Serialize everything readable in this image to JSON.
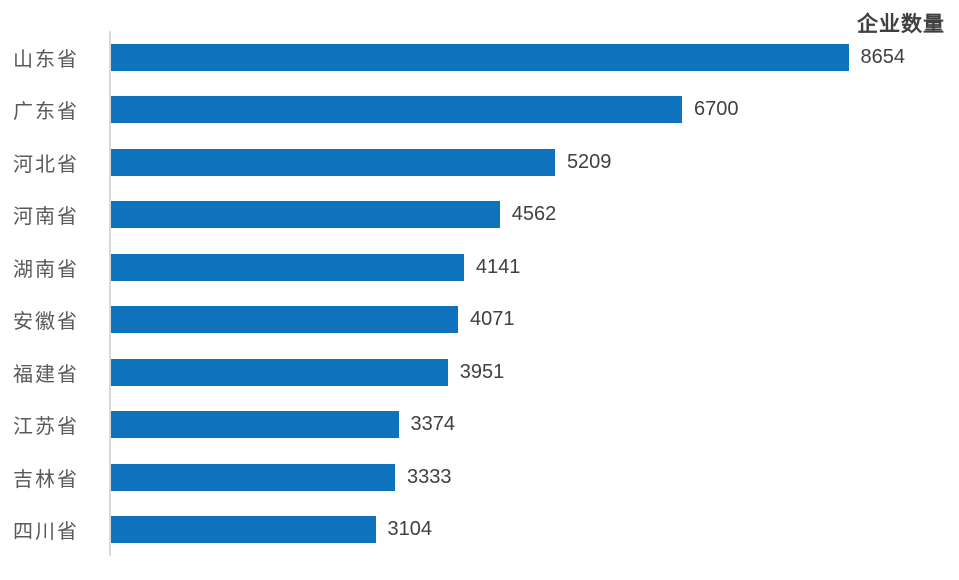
{
  "chart_data": {
    "type": "bar",
    "orientation": "horizontal",
    "title": "企业数量",
    "categories": [
      "山东省",
      "广东省",
      "河北省",
      "河南省",
      "湖南省",
      "安徽省",
      "福建省",
      "江苏省",
      "吉林省",
      "四川省"
    ],
    "values": [
      8654,
      6700,
      5209,
      4562,
      4141,
      4071,
      3951,
      3374,
      3333,
      3104
    ],
    "data_labels": [
      8654,
      6700,
      5209,
      4562,
      4141,
      4071,
      3951,
      3374,
      3333,
      3104
    ],
    "xlabel": "",
    "ylabel": "",
    "xlim": [
      0,
      9950
    ],
    "grid": false,
    "legend_position": "none",
    "bar_color": "#0e72bc",
    "axis_line_color": "#d9d9d9",
    "category_label_color": "#595959",
    "value_label_color": "#404040",
    "title_color": "#404040"
  }
}
